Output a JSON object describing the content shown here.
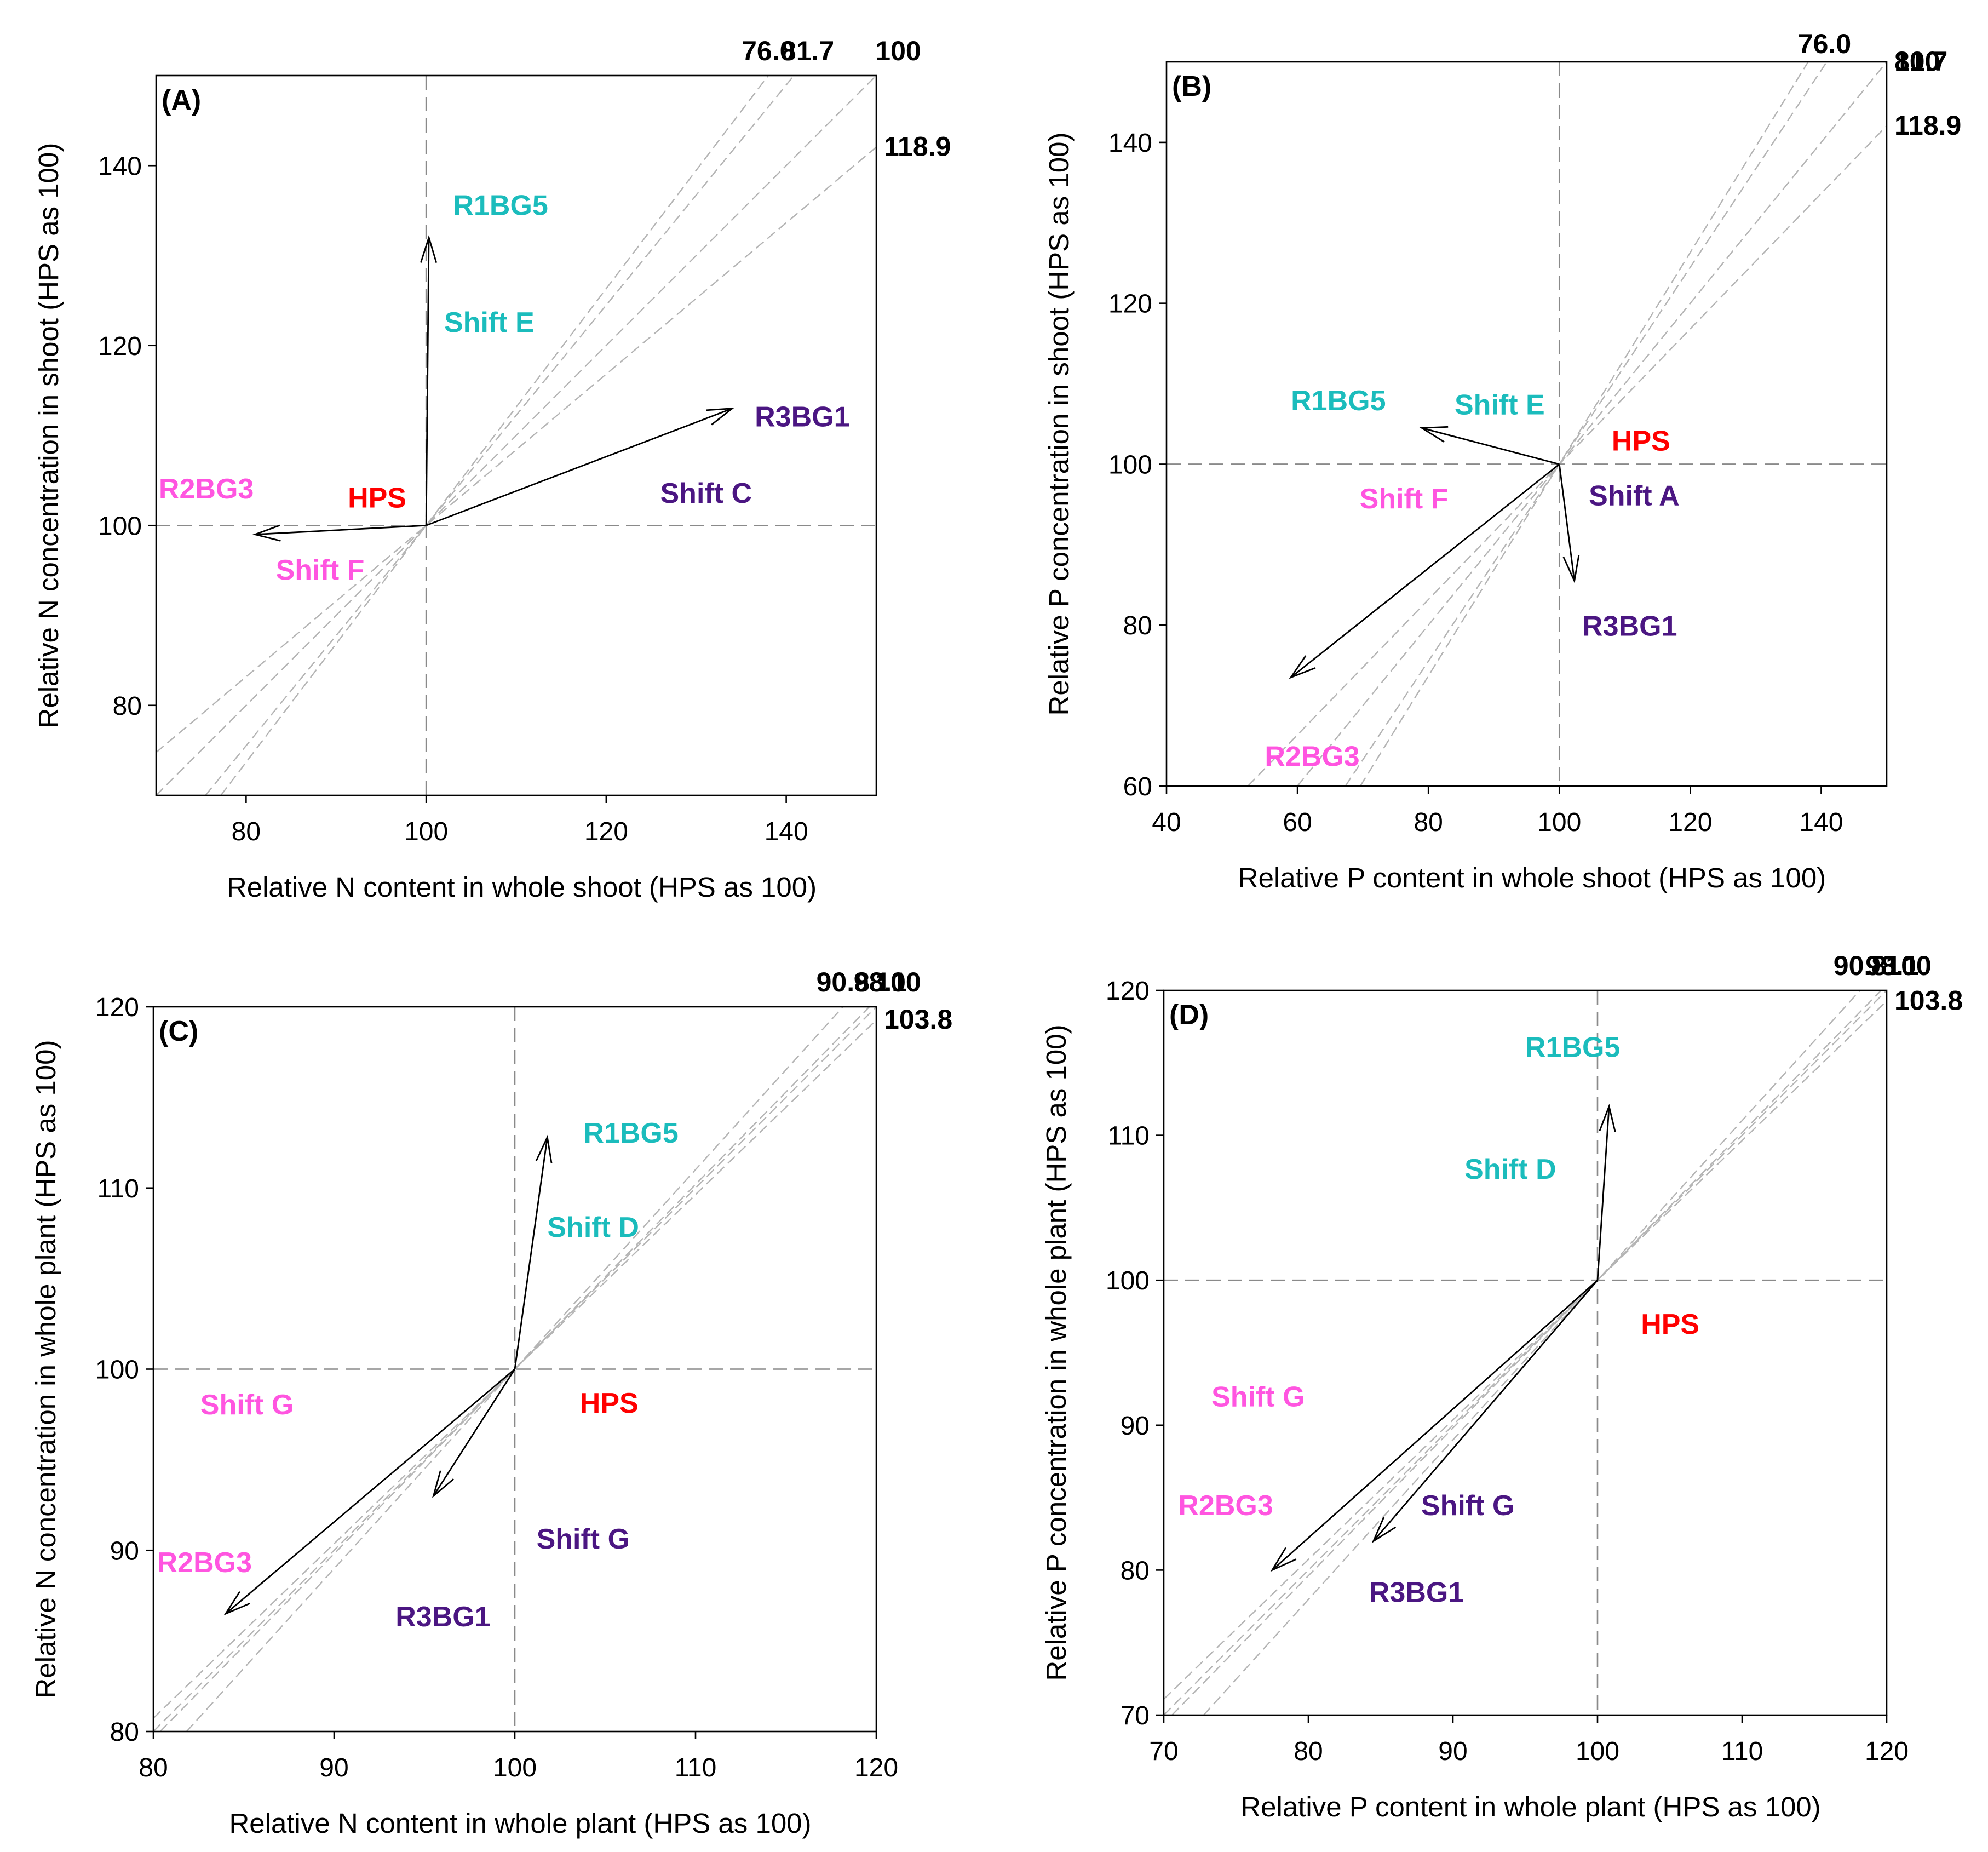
{
  "colors": {
    "R1BG5": "#1bbcbc",
    "R2BG3": "#ff55e0",
    "R3BG1": "#4b1682",
    "HPS": "#ff0000",
    "ratio_line": "#b4b4b4",
    "reference_line": "#8a8a8a"
  },
  "chart_data": [
    {
      "panel": "(A)",
      "type": "vector",
      "xlabel": "Relative N content in whole shoot (HPS as 100)",
      "ylabel": "Relative N concentration in shoot (HPS as 100)",
      "xlim": [
        70,
        150
      ],
      "ylim": [
        70,
        150
      ],
      "xticks": [
        80,
        100,
        120,
        140
      ],
      "yticks": [
        80,
        100,
        120,
        140
      ],
      "origin": [
        100,
        100
      ],
      "ratio_lines": [
        {
          "label": "76.0",
          "slope": 1.3158
        },
        {
          "label": "81.7",
          "slope": 1.224
        },
        {
          "label": "100",
          "slope": 1.0
        },
        {
          "label": "118.9",
          "slope": 0.841
        }
      ],
      "vectors": [
        {
          "treatment": "R1BG5",
          "to": [
            100.3,
            132
          ]
        },
        {
          "treatment": "R2BG3",
          "to": [
            81,
            99
          ]
        },
        {
          "treatment": "R3BG1",
          "to": [
            134,
            113
          ]
        }
      ],
      "annotations": [
        {
          "text": "R1BG5",
          "color_key": "R1BG5",
          "at": [
            103,
            134.5
          ]
        },
        {
          "text": "Shift E",
          "color_key": "R1BG5",
          "at": [
            102,
            121.5
          ]
        },
        {
          "text": "R3BG1",
          "color_key": "R3BG1",
          "at": [
            136.5,
            111
          ]
        },
        {
          "text": "Shift C",
          "color_key": "R3BG1",
          "at": [
            126,
            102.5
          ]
        },
        {
          "text": "R2BG3",
          "color_key": "R2BG3",
          "at": [
            70.3,
            103
          ]
        },
        {
          "text": "HPS",
          "color_key": "HPS",
          "at": [
            91.3,
            102
          ]
        },
        {
          "text": "Shift F",
          "color_key": "R2BG3",
          "at": [
            83.3,
            94
          ]
        }
      ]
    },
    {
      "panel": "(B)",
      "type": "vector",
      "xlabel": "Relative P content in whole shoot (HPS as 100)",
      "ylabel": "Relative P concentration in shoot (HPS as 100)",
      "xlim": [
        40,
        150
      ],
      "ylim": [
        60,
        150
      ],
      "xticks": [
        40,
        60,
        80,
        100,
        120,
        140
      ],
      "yticks": [
        60,
        80,
        100,
        120,
        140
      ],
      "origin": [
        100,
        100
      ],
      "ratio_lines": [
        {
          "label": "76.0",
          "slope": 1.3158
        },
        {
          "label": "81.7",
          "slope": 1.224
        },
        {
          "label": "100",
          "slope": 1.0
        },
        {
          "label": "118.9",
          "slope": 0.841
        }
      ],
      "vectors": [
        {
          "treatment": "R1BG5",
          "to": [
            79,
            104.5
          ]
        },
        {
          "treatment": "R2BG3",
          "to": [
            59,
            73.5
          ]
        },
        {
          "treatment": "R3BG1",
          "to": [
            102.3,
            85.5
          ]
        }
      ],
      "annotations": [
        {
          "text": "R1BG5",
          "color_key": "R1BG5",
          "at": [
            59,
            106.7
          ]
        },
        {
          "text": "Shift E",
          "color_key": "R1BG5",
          "at": [
            84,
            106.2
          ]
        },
        {
          "text": "HPS",
          "color_key": "HPS",
          "at": [
            108,
            101.7
          ]
        },
        {
          "text": "Shift A",
          "color_key": "R3BG1",
          "at": [
            104.5,
            94.9
          ]
        },
        {
          "text": "Shift F",
          "color_key": "R2BG3",
          "at": [
            69.5,
            94.5
          ]
        },
        {
          "text": "R3BG1",
          "color_key": "R3BG1",
          "at": [
            103.5,
            78.7
          ]
        },
        {
          "text": "R2BG3",
          "color_key": "R2BG3",
          "at": [
            55,
            62.5
          ]
        }
      ]
    },
    {
      "panel": "(C)",
      "type": "vector",
      "xlabel": "Relative N content in whole plant (HPS as 100)",
      "ylabel": "Relative N concentration in whole plant (HPS as 100)",
      "xlim": [
        80,
        120
      ],
      "ylim": [
        80,
        120
      ],
      "xticks": [
        80,
        90,
        100,
        110,
        120
      ],
      "yticks": [
        80,
        90,
        100,
        110,
        120
      ],
      "origin": [
        100,
        100
      ],
      "ratio_lines": [
        {
          "label": "90.8",
          "slope": 1.1013
        },
        {
          "label": "98.1",
          "slope": 1.0194
        },
        {
          "label": "100",
          "slope": 1.0
        },
        {
          "label": "103.8",
          "slope": 0.9634
        }
      ],
      "vectors": [
        {
          "treatment": "R1BG5",
          "to": [
            101.8,
            112.8
          ]
        },
        {
          "treatment": "R2BG3",
          "to": [
            84,
            86.5
          ]
        },
        {
          "treatment": "R3BG1",
          "to": [
            95.5,
            93
          ]
        }
      ],
      "annotations": [
        {
          "text": "R1BG5",
          "color_key": "R1BG5",
          "at": [
            103.8,
            112.5
          ]
        },
        {
          "text": "Shift D",
          "color_key": "R1BG5",
          "at": [
            101.8,
            107.3
          ]
        },
        {
          "text": "Shift G",
          "color_key": "R2BG3",
          "at": [
            82.6,
            97.5
          ]
        },
        {
          "text": "HPS",
          "color_key": "HPS",
          "at": [
            103.6,
            97.6
          ]
        },
        {
          "text": "Shift G",
          "color_key": "R3BG1",
          "at": [
            101.2,
            90.1
          ]
        },
        {
          "text": "R2BG3",
          "color_key": "R2BG3",
          "at": [
            80.2,
            88.8
          ]
        },
        {
          "text": "R3BG1",
          "color_key": "R3BG1",
          "at": [
            93.4,
            85.8
          ]
        }
      ]
    },
    {
      "panel": "(D)",
      "type": "vector",
      "xlabel": "Relative P content in whole plant (HPS as 100)",
      "ylabel": "Relative P concentration in whole plant (HPS as 100)",
      "xlim": [
        70,
        120
      ],
      "ylim": [
        70,
        120
      ],
      "xticks": [
        70,
        80,
        90,
        100,
        110,
        120
      ],
      "yticks": [
        70,
        80,
        90,
        100,
        110,
        120
      ],
      "origin": [
        100,
        100
      ],
      "ratio_lines": [
        {
          "label": "90.8",
          "slope": 1.1013
        },
        {
          "label": "98.1",
          "slope": 1.0194
        },
        {
          "label": "100",
          "slope": 1.0
        },
        {
          "label": "103.8",
          "slope": 0.9634
        }
      ],
      "vectors": [
        {
          "treatment": "R1BG5",
          "to": [
            100.8,
            112
          ]
        },
        {
          "treatment": "R2BG3",
          "to": [
            77.5,
            80
          ]
        },
        {
          "treatment": "R3BG1",
          "to": [
            84.5,
            82
          ]
        }
      ],
      "annotations": [
        {
          "text": "R1BG5",
          "color_key": "R1BG5",
          "at": [
            95,
            115.4
          ]
        },
        {
          "text": "Shift D",
          "color_key": "R1BG5",
          "at": [
            90.8,
            107
          ]
        },
        {
          "text": "HPS",
          "color_key": "HPS",
          "at": [
            103,
            96.3
          ]
        },
        {
          "text": "Shift G",
          "color_key": "R2BG3",
          "at": [
            73.3,
            91.3
          ]
        },
        {
          "text": "R2BG3",
          "color_key": "R2BG3",
          "at": [
            71,
            83.8
          ]
        },
        {
          "text": "Shift G",
          "color_key": "R3BG1",
          "at": [
            87.8,
            83.8
          ]
        },
        {
          "text": "R3BG1",
          "color_key": "R3BG1",
          "at": [
            84.2,
            77.8
          ]
        }
      ]
    }
  ]
}
